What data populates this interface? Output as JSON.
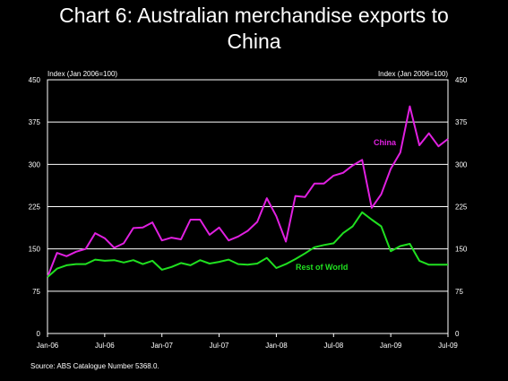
{
  "title_lines": [
    "Chart 6: Australian merchandise exports to",
    "China"
  ],
  "source": "Source:  ABS Catalogue Number 5368.0.",
  "colors": {
    "china": "#e020e0",
    "rest_of_world": "#20e020",
    "grid": "#ffffff",
    "background": "#000000"
  },
  "chart_data": {
    "type": "line",
    "y_label_left": "Index (Jan 2006=100)",
    "y_label_right": "Index (Jan 2006=100)",
    "ylim": [
      0,
      450
    ],
    "y_ticks": [
      0,
      75,
      150,
      225,
      300,
      375,
      450
    ],
    "y_tick_labels": [
      "0",
      "75",
      "150",
      "225",
      "300",
      "375",
      "450"
    ],
    "x_tick_labels": [
      "Jan-06",
      "Jul-06",
      "Jan-07",
      "Jul-07",
      "Jan-08",
      "Jul-08",
      "Jan-09",
      "Jul-09"
    ],
    "grid": "horizontal",
    "start": "Jan-06",
    "series": [
      {
        "name": "China",
        "values": [
          100,
          143,
          137,
          145,
          150,
          178,
          169,
          152,
          160,
          187,
          188,
          197,
          165,
          170,
          167,
          202,
          202,
          175,
          188,
          165,
          172,
          182,
          198,
          240,
          208,
          163,
          244,
          242,
          266,
          266,
          280,
          285,
          298,
          308,
          223,
          247,
          292,
          321,
          403,
          334,
          355,
          332,
          345
        ]
      },
      {
        "name": "Rest of World",
        "values": [
          100,
          115,
          121,
          123,
          123,
          131,
          129,
          130,
          126,
          130,
          123,
          129,
          113,
          118,
          125,
          121,
          130,
          124,
          127,
          131,
          123,
          122,
          124,
          134,
          116,
          123,
          132,
          142,
          153,
          157,
          160,
          178,
          190,
          215,
          202,
          190,
          146,
          155,
          159,
          129,
          122,
          122,
          122
        ]
      }
    ]
  }
}
